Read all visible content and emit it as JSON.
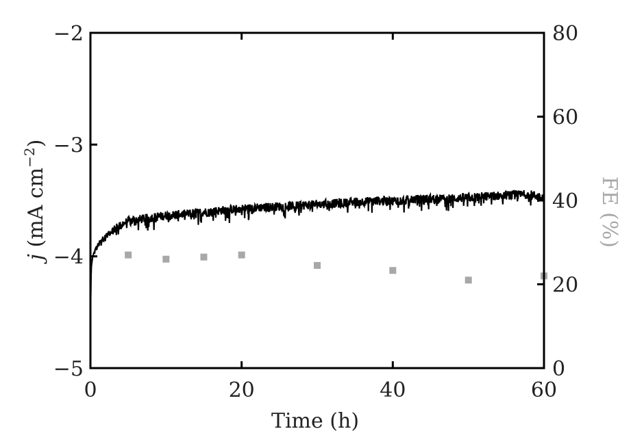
{
  "chart_data": {
    "type": "line",
    "xlabel": "Time (h)",
    "ylabel": "j (mA cm−2)",
    "ylabel_parts": {
      "var": "j",
      "open": " (mA cm",
      "sup": "−2",
      "close": ")"
    },
    "y2label": "FE (%)",
    "xlim": [
      0,
      60
    ],
    "ylim": [
      -5,
      -2
    ],
    "y2lim": [
      0,
      80
    ],
    "xticks": [
      0,
      20,
      40,
      60
    ],
    "xtick_labels": [
      "0",
      "20",
      "40",
      "60"
    ],
    "yticks": [
      -5,
      -4,
      -3,
      -2
    ],
    "ytick_labels": [
      "−5",
      "−4",
      "−3",
      "−2"
    ],
    "y2ticks": [
      0,
      20,
      40,
      60,
      80
    ],
    "y2tick_labels": [
      "0",
      "20",
      "40",
      "60",
      "80"
    ],
    "grid": false,
    "series": [
      {
        "axis": "left",
        "style": "line",
        "color": "#000000",
        "x": [
          0,
          0.1,
          0.3,
          0.6,
          1,
          1.5,
          2,
          3,
          4,
          5,
          6,
          8,
          10,
          12,
          15,
          18,
          20,
          22,
          25,
          28,
          30,
          33,
          35,
          38,
          40,
          42,
          45,
          48,
          50,
          52,
          55,
          58,
          60
        ],
        "y": [
          -4.55,
          -4.1,
          -4.0,
          -3.95,
          -3.9,
          -3.85,
          -3.82,
          -3.76,
          -3.72,
          -3.68,
          -3.67,
          -3.65,
          -3.63,
          -3.62,
          -3.6,
          -3.58,
          -3.57,
          -3.56,
          -3.55,
          -3.54,
          -3.53,
          -3.52,
          -3.51,
          -3.5,
          -3.5,
          -3.49,
          -3.48,
          -3.48,
          -3.47,
          -3.46,
          -3.45,
          -3.44,
          -3.47
        ]
      },
      {
        "axis": "right",
        "style": "scatter",
        "color": "#a8a8a8",
        "x": [
          5,
          10,
          15,
          20,
          30,
          40,
          50,
          60
        ],
        "y": [
          27,
          26,
          26.5,
          27,
          24.5,
          23.3,
          21,
          22
        ]
      }
    ]
  }
}
